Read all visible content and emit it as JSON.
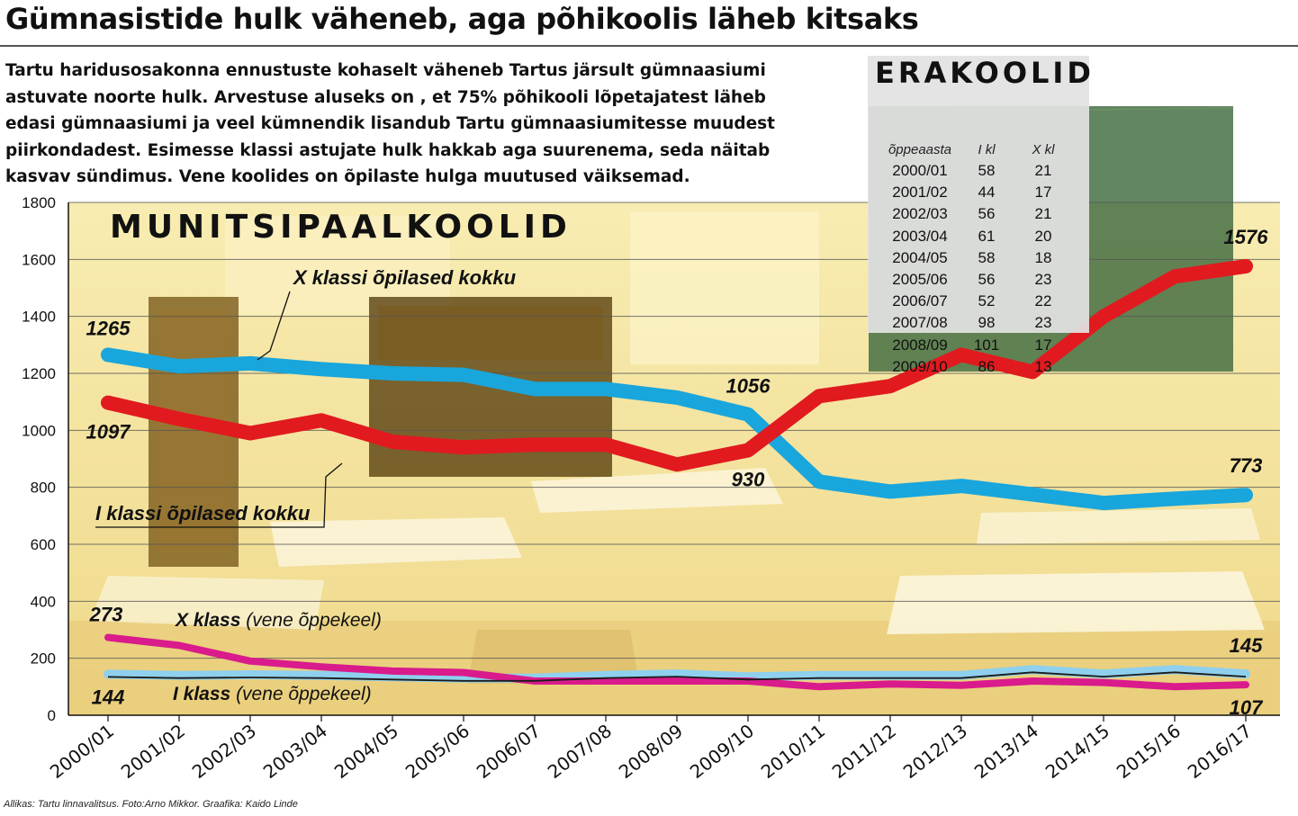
{
  "headline": "Gümnasistide hulk väheneb, aga põhikoolis läheb kitsaks",
  "lede_lines": [
    "Tartu haridusosakonna ennustuste kohaselt väheneb Tartus järsult gümnaasiumi",
    "astuvate noorte hulk. Arvestuse aluseks on , et 75% põhikooli lõpetajatest läheb",
    "edasi gümnaasiumi ja veel kümnendik lisandub Tartu gümnaasiumitesse muudest",
    "piirkondadest. Esimesse klassi astujate hulk hakkab aga suurenema, seda näitab",
    "kasvav sündimus. Vene koolides on õpilaste hulga muutused väiksemad."
  ],
  "source": "Allikas: Tartu linnavalitsus. Foto:Arno Mikkor. Graafika: Kaido Linde",
  "erakoolid": {
    "title": "ERAKOOLID",
    "columns": [
      "õppeaasta",
      "I kl",
      "X kl"
    ],
    "rows": [
      [
        "2000/01",
        "58",
        "21"
      ],
      [
        "2001/02",
        "44",
        "17"
      ],
      [
        "2002/03",
        "56",
        "21"
      ],
      [
        "2003/04",
        "61",
        "20"
      ],
      [
        "2004/05",
        "58",
        "18"
      ],
      [
        "2005/06",
        "56",
        "23"
      ],
      [
        "2006/07",
        "52",
        "22"
      ],
      [
        "2007/08",
        "98",
        "23"
      ],
      [
        "2008/09",
        "101",
        "17"
      ],
      [
        "2009/10",
        "86",
        "13"
      ]
    ]
  },
  "chart_data": {
    "type": "line",
    "title": "MUNITSIPAALKOOLID",
    "xlabel": "",
    "ylabel": "",
    "ylim": [
      0,
      1800
    ],
    "yticks": [
      0,
      200,
      400,
      600,
      800,
      1000,
      1200,
      1400,
      1600,
      1800
    ],
    "grid": true,
    "x": [
      "2000/01",
      "2001/02",
      "2002/03",
      "2003/04",
      "2004/05",
      "2005/06",
      "2006/07",
      "2007/08",
      "2008/09",
      "2009/10",
      "2010/11",
      "2011/12",
      "2012/13",
      "2013/14",
      "2014/15",
      "2015/16",
      "2016/17"
    ],
    "series": [
      {
        "name": "X klassi õpilased kokku",
        "color": "#19a6dc",
        "values": [
          1265,
          1225,
          1235,
          1215,
          1200,
          1195,
          1145,
          1145,
          1115,
          1056,
          820,
          785,
          805,
          775,
          745,
          760,
          773
        ]
      },
      {
        "name": "I klassi õpilased kokku",
        "color": "#e11a1f",
        "values": [
          1097,
          1040,
          990,
          1035,
          960,
          940,
          950,
          950,
          880,
          930,
          1120,
          1155,
          1265,
          1205,
          1400,
          1540,
          1576
        ]
      },
      {
        "name": "X klass (vene õppekeel)",
        "color": "#d91b8c",
        "values": [
          273,
          245,
          190,
          170,
          155,
          150,
          120,
          120,
          120,
          120,
          100,
          110,
          105,
          120,
          115,
          100,
          107
        ]
      },
      {
        "name": "I klass (vene õppekeel)",
        "color": "#8ed0ee",
        "values": [
          144,
          140,
          142,
          140,
          135,
          130,
          130,
          140,
          145,
          135,
          140,
          140,
          140,
          160,
          145,
          160,
          145
        ]
      }
    ],
    "data_labels": [
      {
        "text": "1265",
        "series": 0,
        "index": 0
      },
      {
        "text": "1097",
        "series": 1,
        "index": 0
      },
      {
        "text": "1056",
        "series": 0,
        "index": 9
      },
      {
        "text": "930",
        "series": 1,
        "index": 9
      },
      {
        "text": "1576",
        "series": 1,
        "index": 16
      },
      {
        "text": "773",
        "series": 0,
        "index": 16
      },
      {
        "text": "273",
        "series": 2,
        "index": 0
      },
      {
        "text": "144",
        "series": 3,
        "index": 0
      },
      {
        "text": "145",
        "series": 3,
        "index": 16
      },
      {
        "text": "107",
        "series": 2,
        "index": 16
      }
    ]
  }
}
